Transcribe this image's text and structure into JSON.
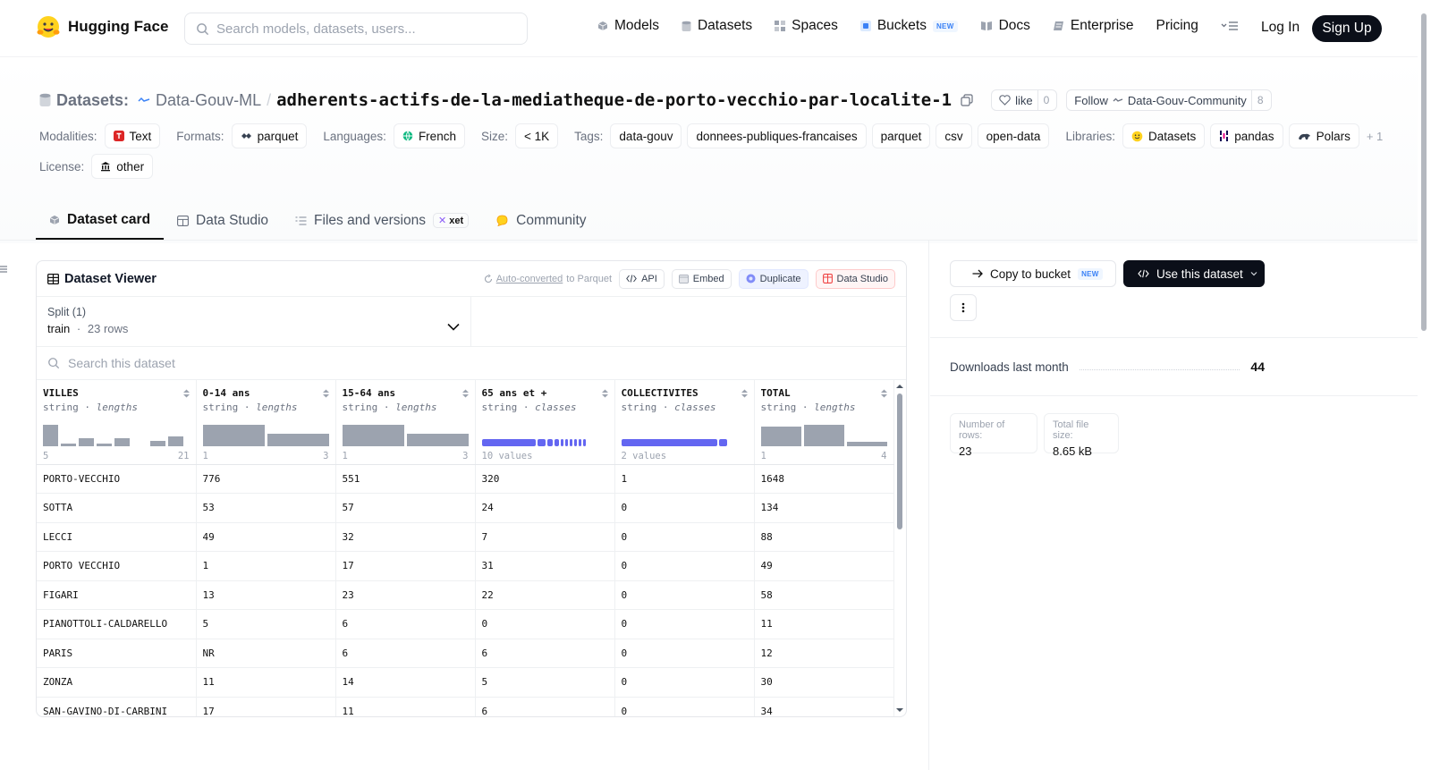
{
  "nav": {
    "brand": "Hugging Face",
    "search_placeholder": "Search models, datasets, users...",
    "links": {
      "models": "Models",
      "datasets": "Datasets",
      "spaces": "Spaces",
      "buckets": "Buckets",
      "buckets_badge": "NEW",
      "docs": "Docs",
      "enterprise": "Enterprise",
      "pricing": "Pricing"
    },
    "login": "Log In",
    "signup": "Sign Up"
  },
  "header": {
    "type_label": "Datasets:",
    "org": "Data-Gouv-ML",
    "separator": "/",
    "name": "adherents-actifs-de-la-mediatheque-de-porto-vecchio-par-localite-1",
    "like_label": "like",
    "like_count": "0",
    "follow_label": "Follow",
    "follow_org": "Data-Gouv-Community",
    "follow_count": "8"
  },
  "meta": {
    "modalities_label": "Modalities:",
    "modality": "Text",
    "formats_label": "Formats:",
    "format": "parquet",
    "languages_label": "Languages:",
    "language": "French",
    "size_label": "Size:",
    "size": "< 1K",
    "tags_label": "Tags:",
    "tags": [
      "data-gouv",
      "donnees-publiques-francaises",
      "parquet",
      "csv",
      "open-data"
    ],
    "libraries_label": "Libraries:",
    "libraries": [
      "Datasets",
      "pandas",
      "Polars"
    ],
    "libraries_more": "+ 1",
    "license_label": "License:",
    "license": "other"
  },
  "tabs": {
    "card": "Dataset card",
    "studio": "Data Studio",
    "files": "Files and versions",
    "files_badge": "xet",
    "community": "Community"
  },
  "viewer": {
    "title": "Dataset Viewer",
    "autoconv_link": "Auto-converted",
    "autoconv_rest": "to Parquet",
    "api": "API",
    "embed": "Embed",
    "duplicate": "Duplicate",
    "data_studio": "Data Studio",
    "split_label": "Split (1)",
    "split_name": "train",
    "split_sep": "·",
    "split_rows": "23 rows",
    "search_placeholder": "Search this dataset"
  },
  "columns": [
    {
      "name": "VILLES",
      "type": "string",
      "stat": "lengths",
      "range_min": "5",
      "range_max": "21",
      "hist": [
        0.8,
        0.1,
        0.3,
        0.1,
        0.3,
        0,
        0.2,
        0.35
      ]
    },
    {
      "name": "0-14 ans",
      "type": "string",
      "stat": "lengths",
      "range_min": "1",
      "range_max": "3",
      "hist": [
        0.8,
        0.45
      ]
    },
    {
      "name": "15-64 ans",
      "type": "string",
      "stat": "lengths",
      "range_min": "1",
      "range_max": "3",
      "hist": [
        0.8,
        0.45
      ]
    },
    {
      "name": "65 ans et +",
      "type": "string",
      "stat": "classes",
      "range_min": "10 values",
      "range_max": ""
    },
    {
      "name": "COLLECTIVITES",
      "type": "string",
      "stat": "classes",
      "range_min": "2 values",
      "range_max": ""
    },
    {
      "name": "TOTAL",
      "type": "string",
      "stat": "lengths",
      "range_min": "1",
      "range_max": "4",
      "hist": [
        0.72,
        0.8,
        0.14
      ]
    }
  ],
  "rows": [
    [
      "PORTO-VECCHIO",
      "776",
      "551",
      "320",
      "1",
      "1648"
    ],
    [
      "SOTTA",
      "53",
      "57",
      "24",
      "0",
      "134"
    ],
    [
      "LECCI",
      "49",
      "32",
      "7",
      "0",
      "88"
    ],
    [
      "PORTO VECCHIO",
      "1",
      "17",
      "31",
      "0",
      "49"
    ],
    [
      "FIGARI",
      "13",
      "23",
      "22",
      "0",
      "58"
    ],
    [
      "PIANOTTOLI-CALDARELLO",
      "5",
      "6",
      "0",
      "0",
      "11"
    ],
    [
      "PARIS",
      "NR",
      "6",
      "6",
      "0",
      "12"
    ],
    [
      "ZONZA",
      "11",
      "14",
      "5",
      "0",
      "30"
    ],
    [
      "SAN-GAVINO-DI-CARBINI",
      "17",
      "11",
      "6",
      "0",
      "34"
    ]
  ],
  "sidebar": {
    "copy_bucket": "Copy to bucket",
    "copy_badge": "NEW",
    "use_dataset": "Use this dataset",
    "downloads_label": "Downloads last month",
    "downloads_value": "44",
    "rows_label": "Number of rows:",
    "rows_value": "23",
    "size_label": "Total file size:",
    "size_value": "8.65 kB"
  },
  "colors": {
    "accent_indigo": "#6366f1",
    "dark_button": "#0b0f19",
    "hist_gray": "#9ca3af"
  }
}
